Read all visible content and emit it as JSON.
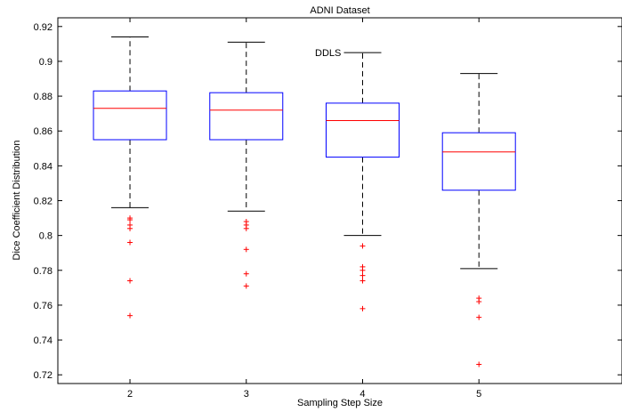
{
  "chart_data": {
    "type": "boxplot",
    "title": "ADNI Dataset",
    "xlabel": "Sampling Step Size",
    "ylabel": "Dice Coefficient Distribution",
    "annotation": "DDLS",
    "ylim": [
      0.715,
      0.925
    ],
    "yticks": [
      0.72,
      0.74,
      0.76,
      0.78,
      0.8,
      0.82,
      0.84,
      0.86,
      0.88,
      0.9,
      0.92
    ],
    "ytick_labels": [
      "0.72",
      "0.74",
      "0.76",
      "0.78",
      "0.8",
      "0.82",
      "0.84",
      "0.86",
      "0.88",
      "0.9",
      "0.92"
    ],
    "grid": false,
    "colors": {
      "box": "#0000ff",
      "median": "#ff0000",
      "whisker": "#000000",
      "outlier": "#ff0000"
    },
    "categories": [
      "2",
      "3",
      "4",
      "5"
    ],
    "boxes": [
      {
        "label": "2",
        "whisker_low": 0.816,
        "q1": 0.855,
        "median": 0.873,
        "q3": 0.883,
        "whisker_high": 0.914,
        "outliers": [
          0.81,
          0.809,
          0.806,
          0.804,
          0.796,
          0.774,
          0.754
        ]
      },
      {
        "label": "3",
        "whisker_low": 0.814,
        "q1": 0.855,
        "median": 0.872,
        "q3": 0.882,
        "whisker_high": 0.911,
        "outliers": [
          0.808,
          0.806,
          0.804,
          0.792,
          0.778,
          0.771
        ]
      },
      {
        "label": "4",
        "whisker_low": 0.8,
        "q1": 0.845,
        "median": 0.866,
        "q3": 0.876,
        "whisker_high": 0.905,
        "outliers": [
          0.794,
          0.782,
          0.78,
          0.777,
          0.774,
          0.758
        ]
      },
      {
        "label": "5",
        "whisker_low": 0.781,
        "q1": 0.826,
        "median": 0.848,
        "q3": 0.859,
        "whisker_high": 0.893,
        "outliers": [
          0.764,
          0.762,
          0.753,
          0.726
        ]
      }
    ]
  }
}
